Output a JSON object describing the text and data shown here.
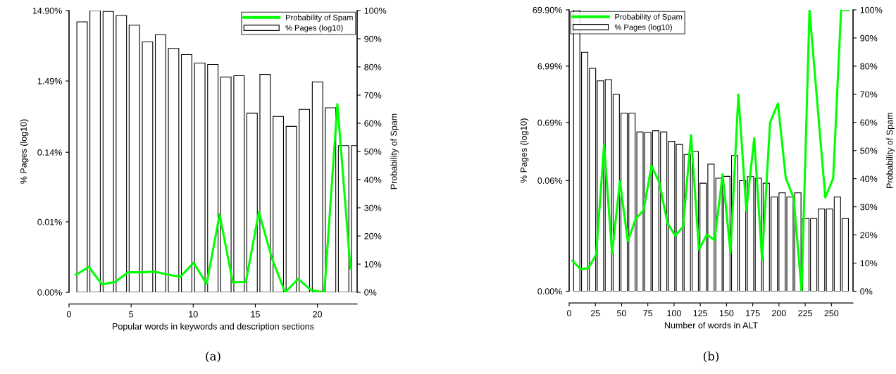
{
  "chart_data": [
    {
      "type": "bar",
      "xlabel": "Popular words in keywords and description sections",
      "ylabel": "% Pages (log10)",
      "y2label": "Probability of Spam",
      "annotations": [
        "(a)"
      ],
      "log": "y",
      "grid": false,
      "legend": "top right",
      "xlim": [
        0,
        23.2
      ],
      "xticks": [
        0,
        5,
        10,
        15,
        20
      ],
      "ylim": [
        0.00149,
        14.9
      ],
      "yticks": [
        {
          "value": 0.00149,
          "label": "0.00%"
        },
        {
          "value": 0.0149,
          "label": "0.01%"
        },
        {
          "value": 0.1449,
          "label": "0.14%"
        },
        {
          "value": 1.49,
          "label": "1.49%"
        },
        {
          "value": 14.9,
          "label": "14.90%"
        }
      ],
      "y2lim": [
        0,
        100
      ],
      "y2ticks": [
        {
          "value": 0,
          "label": "0%"
        },
        {
          "value": 10,
          "label": "10%"
        },
        {
          "value": 20,
          "label": "20%"
        },
        {
          "value": 30,
          "label": "30%"
        },
        {
          "value": 40,
          "label": "40%"
        },
        {
          "value": 50,
          "label": "50%"
        },
        {
          "value": 60,
          "label": "60%"
        },
        {
          "value": 70,
          "label": "70%"
        },
        {
          "value": 80,
          "label": "80%"
        },
        {
          "value": 90,
          "label": "90%"
        },
        {
          "value": 100,
          "label": "100%"
        }
      ],
      "series": [
        {
          "name": "Probability of Spam",
          "type": "line",
          "axis": "y2",
          "color": "#00ff00",
          "x": [
            0.55,
            1.6,
            2.66,
            3.71,
            4.76,
            5.82,
            6.87,
            7.92,
            8.97,
            10.03,
            11.08,
            12.13,
            13.19,
            14.24,
            15.29,
            16.35,
            17.4,
            18.45,
            19.51,
            20.56,
            21.61,
            22.66
          ],
          "values": [
            6.2,
            9.0,
            2.8,
            3.7,
            7.1,
            7.1,
            7.3,
            6.3,
            5.5,
            10.5,
            3.0,
            27.6,
            3.5,
            3.7,
            28.5,
            11.9,
            0,
            4.7,
            0.7,
            0,
            66.8,
            8.5
          ]
        },
        {
          "name": "% Pages (log10)",
          "axis": "y",
          "color": "#ffffff",
          "x": [
            1.05,
            2.1,
            3.16,
            4.21,
            5.26,
            6.32,
            7.37,
            8.42,
            9.47,
            10.53,
            11.58,
            12.63,
            13.69,
            14.74,
            15.79,
            16.85,
            17.9,
            18.95,
            20.01,
            21.06,
            22.11,
            23.16
          ],
          "values": [
            10.3,
            14.9,
            14.5,
            12.7,
            9.24,
            5.35,
            6.78,
            4.32,
            3.53,
            2.68,
            2.56,
            1.7,
            1.77,
            0.521,
            1.85,
            0.468,
            0.338,
            0.59,
            1.45,
            0.621,
            0.18,
            0.18
          ]
        }
      ]
    },
    {
      "type": "bar",
      "xlabel": "Number of words in ALT",
      "ylabel": "% Pages (log10)",
      "y2label": "Probability of Spam",
      "annotations": [
        "(b)"
      ],
      "log": "y",
      "grid": false,
      "legend": "top left",
      "xlim": [
        0,
        270.6
      ],
      "xticks": [
        0,
        25,
        50,
        75,
        100,
        125,
        150,
        175,
        200,
        225,
        250
      ],
      "ylim": [
        0.000699,
        69.9
      ],
      "yticks": [
        {
          "value": 0.000699,
          "label": "0.00%"
        },
        {
          "value": 0.0649,
          "label": "0.06%"
        },
        {
          "value": 0.6949,
          "label": "0.69%"
        },
        {
          "value": 6.99,
          "label": "6.99%"
        },
        {
          "value": 69.9,
          "label": "69.90%"
        }
      ],
      "y2lim": [
        0,
        100
      ],
      "y2ticks": [
        {
          "value": 0,
          "label": "0%"
        },
        {
          "value": 10,
          "label": "10%"
        },
        {
          "value": 20,
          "label": "20%"
        },
        {
          "value": 30,
          "label": "30%"
        },
        {
          "value": 40,
          "label": "40%"
        },
        {
          "value": 50,
          "label": "50%"
        },
        {
          "value": 60,
          "label": "60%"
        },
        {
          "value": 70,
          "label": "70%"
        },
        {
          "value": 80,
          "label": "80%"
        },
        {
          "value": 90,
          "label": "90%"
        },
        {
          "value": 100,
          "label": "100%"
        }
      ],
      "series": [
        {
          "name": "Probability of Spam",
          "type": "line",
          "axis": "y2",
          "color": "#00ff00",
          "x": [
            3.2,
            10.7,
            18.3,
            25.8,
            33.3,
            40.9,
            48.4,
            55.9,
            63.4,
            71.0,
            78.5,
            86.0,
            93.6,
            101.1,
            108.6,
            116.2,
            123.7,
            131.2,
            138.7,
            146.3,
            153.8,
            161.3,
            168.9,
            176.4,
            183.9,
            191.5,
            199.0,
            206.5,
            214.0,
            221.6,
            229.1,
            236.6,
            244.2,
            251.7,
            259.2,
            266.8
          ],
          "values": [
            10.8,
            7.9,
            8.2,
            13.1,
            52.1,
            13.5,
            39.1,
            17.8,
            25.7,
            28.8,
            44.6,
            38.6,
            24.4,
            19.7,
            23.0,
            55.5,
            14.8,
            20.1,
            18.2,
            41.6,
            13.7,
            69.9,
            28.6,
            54.4,
            11.1,
            60.0,
            66.7,
            40.2,
            33.2,
            0,
            100,
            66.7,
            33.3,
            40.2,
            100,
            100
          ]
        },
        {
          "name": "% Pages (log10)",
          "axis": "y",
          "color": "#ffffff",
          "x": [
            7.2,
            14.8,
            22.3,
            29.8,
            37.4,
            44.9,
            52.4,
            59.9,
            67.5,
            75.0,
            82.5,
            90.1,
            97.6,
            105.1,
            112.6,
            120.2,
            127.7,
            135.2,
            142.8,
            150.3,
            157.8,
            165.3,
            172.9,
            180.4,
            187.9,
            195.5,
            203.0,
            210.5,
            218.0,
            225.6,
            233.1,
            240.6,
            248.2,
            255.7,
            263.2
          ],
          "values": [
            69.9,
            12.3,
            6.4,
            3.83,
            4.03,
            2.2,
            1.02,
            1.02,
            0.472,
            0.46,
            0.497,
            0.472,
            0.323,
            0.283,
            0.189,
            0.213,
            0.0581,
            0.127,
            0.0713,
            0.077,
            0.181,
            0.0644,
            0.0762,
            0.0713,
            0.0581,
            0.033,
            0.0392,
            0.033,
            0.0392,
            0.0137,
            0.0137,
            0.0202,
            0.0202,
            0.033,
            0.0137
          ]
        }
      ]
    }
  ]
}
